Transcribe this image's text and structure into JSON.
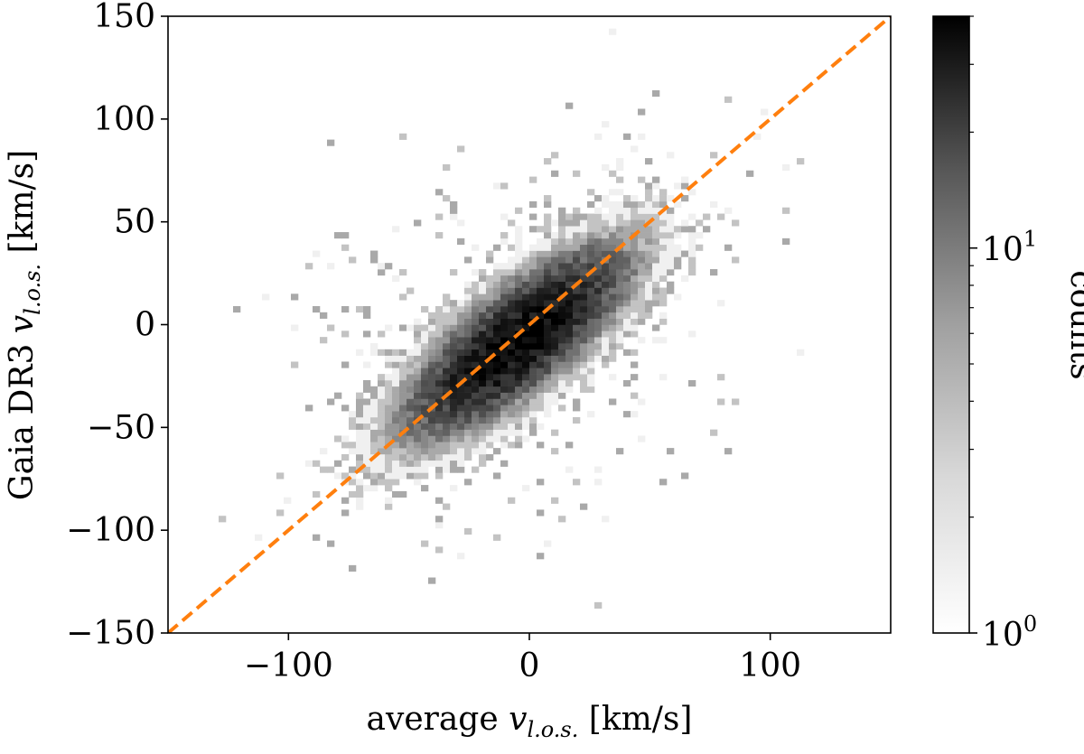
{
  "chart_data": {
    "type": "heatmap",
    "subtype": "2d-histogram",
    "title": "",
    "xlabel": {
      "prefix": "average ",
      "var": "v",
      "sub": "l.o.s.",
      "unit": " [km/s]"
    },
    "ylabel": {
      "prefix": "Gaia DR3 ",
      "var": "v",
      "sub": "l.o.s.",
      "unit": " [km/s]"
    },
    "xlim": [
      -150,
      150
    ],
    "ylim": [
      -150,
      150
    ],
    "x_ticks": [
      -100,
      0,
      100
    ],
    "x_tick_labels": [
      "−100",
      "0",
      "100"
    ],
    "y_ticks": [
      -150,
      -100,
      -50,
      0,
      50,
      100,
      150
    ],
    "y_tick_labels": [
      "−150",
      "−100",
      "−50",
      "0",
      "50",
      "100",
      "150"
    ],
    "reference_line": {
      "style": "dashed",
      "color": "#ff7f0e",
      "points": [
        [
          -150,
          -150
        ],
        [
          150,
          150
        ]
      ]
    },
    "bin_size": 3,
    "distribution": {
      "center": [
        -5,
        -8
      ],
      "major_axis_slope": 1.0,
      "sigma_along": 32,
      "sigma_across": 11,
      "peak_count": 40
    },
    "colorbar": {
      "label": "counts",
      "scale": "log",
      "range": [
        1,
        40
      ],
      "colormap": "Greys",
      "ticks": [
        1,
        10
      ],
      "tick_labels": [
        {
          "base": "10",
          "exp": "0"
        },
        {
          "base": "10",
          "exp": "1"
        }
      ]
    }
  }
}
